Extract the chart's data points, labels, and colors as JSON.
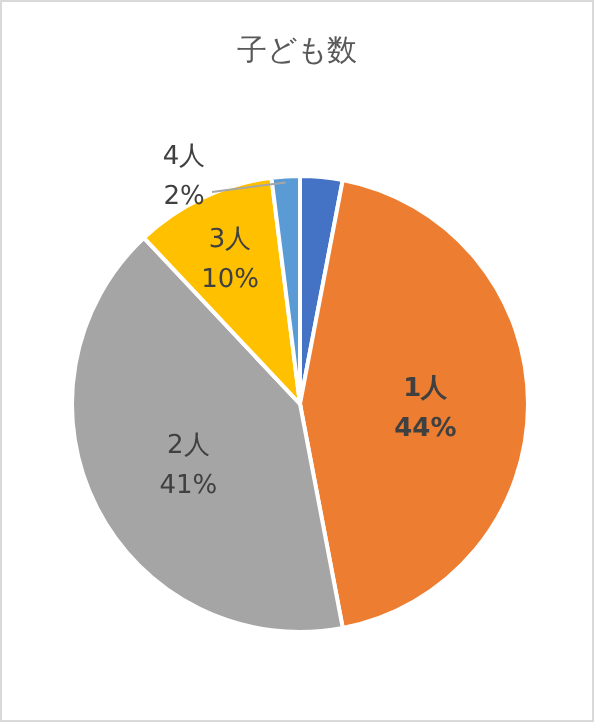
{
  "chart_data": {
    "type": "pie",
    "title": "子ども数",
    "categories": [
      null,
      "1人",
      "2人",
      "3人",
      "4人"
    ],
    "values": [
      3,
      44,
      41,
      10,
      2
    ],
    "colors": [
      "#4472c4",
      "#ed7d31",
      "#a5a5a5",
      "#ffc000",
      "#5b9bd5"
    ],
    "value_labels": [
      null,
      "44%",
      "41%",
      "10%",
      "2%"
    ]
  }
}
